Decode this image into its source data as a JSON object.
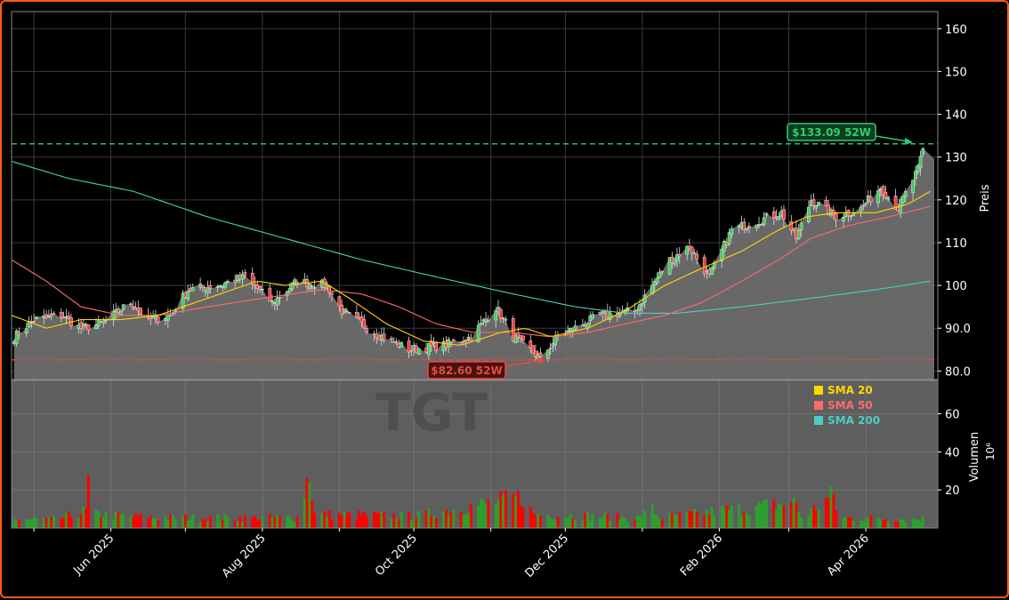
{
  "chart_data": {
    "type": "candlestick",
    "ticker": "TGT",
    "colors": {
      "background": "#000000",
      "border": "#ff5a14",
      "up": "#2ca02c",
      "down": "#ff0000",
      "sma20": "#ffd700",
      "sma50": "#ff6b6b",
      "sma200": "#4ecdc4",
      "high_line": "#2ecc71",
      "low_line": "#e74c3c",
      "area": "#6e6e6e"
    },
    "price_axis": {
      "label": "Preis",
      "ylim": [
        78,
        164
      ],
      "ticks": [
        "80.0",
        "90.0",
        "100",
        "110",
        "120",
        "130",
        "140",
        "150",
        "160"
      ]
    },
    "volume_axis": {
      "label": "Volumen",
      "unit": "10⁶",
      "ylim": [
        0,
        78
      ],
      "ticks": [
        "20",
        "40",
        "60"
      ]
    },
    "x_ticks": [
      "Jun 2025",
      "Aug 2025",
      "Oct 2025",
      "Dec 2025",
      "Feb 2026",
      "Apr 2026"
    ],
    "x_tick_dates": [
      "2025-06-01",
      "2025-08-01",
      "2025-10-01",
      "2025-12-01",
      "2026-02-01",
      "2026-04-01"
    ],
    "x_range": [
      "2025-04-22",
      "2026-04-30"
    ],
    "legend": [
      {
        "label": "SMA 20",
        "color": "#ffd700"
      },
      {
        "label": "SMA 50",
        "color": "#ff6b6b"
      },
      {
        "label": "SMA 200",
        "color": "#4ecdc4"
      }
    ],
    "annotations": {
      "high": {
        "label": "$133.09 52W",
        "value": 133.09,
        "date": "2026-04-24"
      },
      "low": {
        "label": "$82.60 52W",
        "value": 82.6,
        "date": "2025-11-21"
      }
    },
    "close_keypoints": [
      [
        "2025-04-23",
        88
      ],
      [
        "2025-05-01",
        92
      ],
      [
        "2025-05-12",
        93
      ],
      [
        "2025-05-20",
        90
      ],
      [
        "2025-05-28",
        91
      ],
      [
        "2025-06-09",
        96
      ],
      [
        "2025-06-16",
        92
      ],
      [
        "2025-06-25",
        93
      ],
      [
        "2025-07-02",
        99
      ],
      [
        "2025-07-14",
        100
      ],
      [
        "2025-07-25",
        102
      ],
      [
        "2025-08-05",
        96
      ],
      [
        "2025-08-15",
        101
      ],
      [
        "2025-08-27",
        100
      ],
      [
        "2025-09-02",
        94
      ],
      [
        "2025-09-15",
        89
      ],
      [
        "2025-09-29",
        85
      ],
      [
        "2025-10-13",
        86
      ],
      [
        "2025-10-24",
        88
      ],
      [
        "2025-11-03",
        95
      ],
      [
        "2025-11-10",
        88
      ],
      [
        "2025-11-21",
        83
      ],
      [
        "2025-11-28",
        88
      ],
      [
        "2025-12-15",
        93
      ],
      [
        "2025-12-29",
        94
      ],
      [
        "2026-01-12",
        106
      ],
      [
        "2026-01-20",
        109
      ],
      [
        "2026-01-28",
        102
      ],
      [
        "2026-02-06",
        113
      ],
      [
        "2026-02-16",
        115
      ],
      [
        "2026-02-26",
        117
      ],
      [
        "2026-03-04",
        111
      ],
      [
        "2026-03-10",
        120
      ],
      [
        "2026-03-20",
        116
      ],
      [
        "2026-03-30",
        118
      ],
      [
        "2026-04-07",
        123
      ],
      [
        "2026-04-14",
        118
      ],
      [
        "2026-04-22",
        127
      ],
      [
        "2026-04-24",
        132
      ]
    ],
    "sma20_keypoints": [
      [
        "2025-04-22",
        93
      ],
      [
        "2025-05-06",
        90
      ],
      [
        "2025-05-20",
        92
      ],
      [
        "2025-06-05",
        92
      ],
      [
        "2025-06-20",
        93
      ],
      [
        "2025-07-05",
        96
      ],
      [
        "2025-07-20",
        99
      ],
      [
        "2025-07-30",
        101
      ],
      [
        "2025-08-10",
        100
      ],
      [
        "2025-08-25",
        101
      ],
      [
        "2025-09-05",
        97
      ],
      [
        "2025-09-20",
        91
      ],
      [
        "2025-10-05",
        87
      ],
      [
        "2025-10-20",
        86
      ],
      [
        "2025-11-05",
        89
      ],
      [
        "2025-11-15",
        90
      ],
      [
        "2025-11-25",
        88
      ],
      [
        "2025-12-10",
        90
      ],
      [
        "2025-12-25",
        94
      ],
      [
        "2026-01-10",
        100
      ],
      [
        "2026-01-25",
        104
      ],
      [
        "2026-02-10",
        108
      ],
      [
        "2026-02-25",
        113
      ],
      [
        "2026-03-08",
        116
      ],
      [
        "2026-03-20",
        117
      ],
      [
        "2026-04-05",
        117
      ],
      [
        "2026-04-18",
        119
      ],
      [
        "2026-04-27",
        122
      ]
    ],
    "sma50_keypoints": [
      [
        "2025-04-22",
        106
      ],
      [
        "2025-05-06",
        101
      ],
      [
        "2025-05-20",
        95
      ],
      [
        "2025-06-05",
        93
      ],
      [
        "2025-06-20",
        93
      ],
      [
        "2025-07-10",
        95
      ],
      [
        "2025-08-01",
        97
      ],
      [
        "2025-08-25",
        99
      ],
      [
        "2025-09-10",
        98
      ],
      [
        "2025-09-25",
        95
      ],
      [
        "2025-10-10",
        91
      ],
      [
        "2025-10-25",
        89
      ],
      [
        "2025-11-10",
        89
      ],
      [
        "2025-11-25",
        88
      ],
      [
        "2025-12-10",
        89
      ],
      [
        "2025-12-25",
        91
      ],
      [
        "2026-01-10",
        93
      ],
      [
        "2026-01-25",
        96
      ],
      [
        "2026-02-10",
        101
      ],
      [
        "2026-02-25",
        106
      ],
      [
        "2026-03-10",
        111
      ],
      [
        "2026-03-25",
        114
      ],
      [
        "2026-04-10",
        116
      ],
      [
        "2026-04-27",
        118.5
      ]
    ],
    "sma200_keypoints": [
      [
        "2025-04-22",
        129
      ],
      [
        "2025-05-15",
        125
      ],
      [
        "2025-06-10",
        122
      ],
      [
        "2025-07-10",
        116
      ],
      [
        "2025-08-10",
        111
      ],
      [
        "2025-09-10",
        106
      ],
      [
        "2025-10-10",
        102
      ],
      [
        "2025-11-10",
        98
      ],
      [
        "2025-12-05",
        95
      ],
      [
        "2025-12-25",
        93.5
      ],
      [
        "2026-01-15",
        93.5
      ],
      [
        "2026-02-10",
        95
      ],
      [
        "2026-03-10",
        97
      ],
      [
        "2026-04-05",
        99
      ],
      [
        "2026-04-27",
        101
      ]
    ],
    "volume_keypoints": [
      [
        "2025-04-22",
        5
      ],
      [
        "2025-05-10",
        5
      ],
      [
        "2025-05-22",
        10
      ],
      [
        "2025-05-23",
        26
      ],
      [
        "2025-05-26",
        8
      ],
      [
        "2025-06-20",
        6
      ],
      [
        "2025-08-15",
        6
      ],
      [
        "2025-08-20",
        33
      ],
      [
        "2025-08-22",
        8
      ],
      [
        "2025-10-01",
        7
      ],
      [
        "2025-11-14",
        18
      ],
      [
        "2025-11-18",
        8
      ],
      [
        "2025-12-31",
        6
      ],
      [
        "2026-01-05",
        11
      ],
      [
        "2026-01-08",
        6
      ],
      [
        "2026-03-04",
        15
      ],
      [
        "2026-03-06",
        6
      ],
      [
        "2026-03-19",
        19
      ],
      [
        "2026-03-21",
        6
      ],
      [
        "2026-04-30",
        5
      ]
    ]
  }
}
